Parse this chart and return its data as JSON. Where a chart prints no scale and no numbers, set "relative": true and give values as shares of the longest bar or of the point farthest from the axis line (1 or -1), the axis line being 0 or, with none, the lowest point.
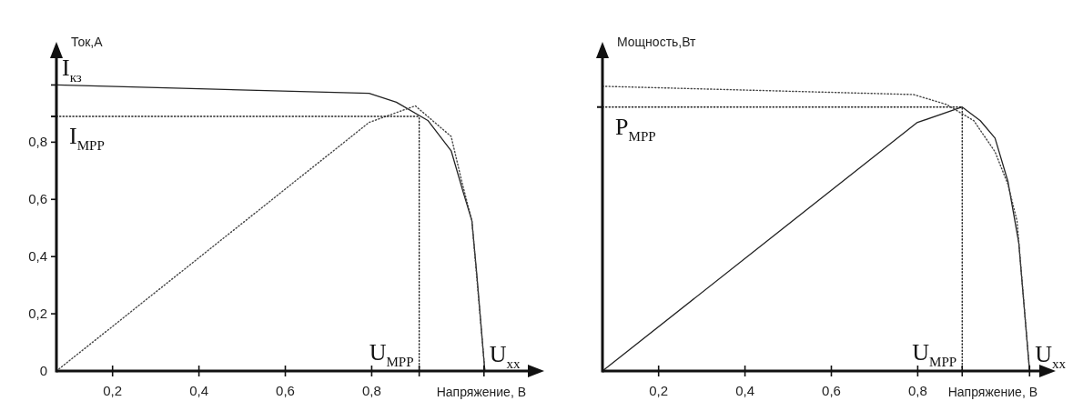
{
  "chart_data": [
    {
      "type": "line",
      "xlabel": "Напряжение, В",
      "ylabel": "Ток,А",
      "xlim": [
        0.07,
        1.17
      ],
      "ylim": [
        0,
        1.1
      ],
      "xticks": [
        {
          "value": 0.2,
          "label": "0,2"
        },
        {
          "value": 0.4,
          "label": "0,4"
        },
        {
          "value": 0.6,
          "label": "0,6"
        },
        {
          "value": 0.8,
          "label": "0,8"
        },
        {
          "value": 0.91,
          "label": null
        },
        {
          "value": 1.06,
          "label": null
        }
      ],
      "yticks": [
        0,
        {
          "value": 0.2,
          "label": "0,2"
        },
        {
          "value": 0.4,
          "label": "0,4"
        },
        {
          "value": 0.6,
          "label": "0,6"
        },
        {
          "value": 0.8,
          "label": "0,8"
        },
        {
          "value": 1.0,
          "label": null
        }
      ],
      "tick_labels": "xy",
      "marker": "none",
      "series": [
        {
          "color": "#222222",
          "line_style": "solid",
          "x": [
            0.07,
            0.794,
            0.857,
            0.93,
            0.984,
            1.011,
            1.032,
            1.043,
            1.062
          ],
          "values": [
            1.0,
            0.971,
            0.94,
            0.876,
            0.77,
            0.63,
            0.525,
            0.344,
            0
          ]
        },
        {
          "color": "#444444",
          "line_style": "dotted",
          "x": [
            0.07,
            0.794,
            0.86,
            0.901,
            0.984,
            1.009,
            1.032,
            1.062
          ],
          "values": [
            0,
            0.869,
            0.905,
            0.927,
            0.82,
            0.66,
            0.525,
            0
          ]
        }
      ],
      "ref_lines": [
        {
          "axis": "y",
          "value": 0.89,
          "label": "I$_{MPP}$",
          "line_style": "dotted",
          "color": "#222222"
        },
        {
          "axis": "x",
          "value": 0.91,
          "label": "U$_{MPP}$",
          "line_style": "dotted",
          "color": "#222222"
        }
      ],
      "annotations": [
        {
          "text": "I$_{кз}$",
          "x": 0.07,
          "y": 1.0
        },
        {
          "text": "U$_{xx}$",
          "x": 1.06,
          "y": 0
        }
      ]
    },
    {
      "type": "line",
      "xlabel": "Напряжение, В",
      "ylabel": "Мощность,Вт",
      "xlim": [
        0.07,
        1.09
      ],
      "relative": true,
      "xticks": [
        {
          "value": 0.2,
          "label": "0,2"
        },
        {
          "value": 0.4,
          "label": "0,4"
        },
        {
          "value": 0.6,
          "label": "0,6"
        },
        {
          "value": 0.8,
          "label": "0,8"
        },
        {
          "value": 0.903,
          "label": null
        },
        {
          "value": 1.059,
          "label": null
        }
      ],
      "tick_labels": "x",
      "marker": "none",
      "series": [
        {
          "color": "#222222",
          "line_style": "solid",
          "x": [
            0.07,
            0.798,
            0.903,
            0.945,
            0.979,
            1.009,
            1.034,
            1.059
          ],
          "values": [
            0,
            0.872,
            0.927,
            0.879,
            0.818,
            0.665,
            0.45,
            0
          ]
        },
        {
          "color": "#444444",
          "line_style": "dotted",
          "x": [
            0.07,
            0.79,
            0.867,
            0.93,
            0.979,
            1.009,
            1.03,
            1.059
          ],
          "values": [
            1.0,
            0.971,
            0.936,
            0.879,
            0.77,
            0.655,
            0.527,
            0
          ]
        }
      ],
      "ref_lines": [
        {
          "axis": "y",
          "value": 0.927,
          "label": "P$_{MPP}$",
          "line_style": "dotted",
          "color": "#222222"
        },
        {
          "axis": "x",
          "value": 0.903,
          "label": "U$_{MPP}$",
          "line_style": "dotted",
          "color": "#222222"
        }
      ],
      "annotations": [
        {
          "text": "U$_{xx}$",
          "x": 1.059,
          "y": 0
        }
      ]
    }
  ]
}
